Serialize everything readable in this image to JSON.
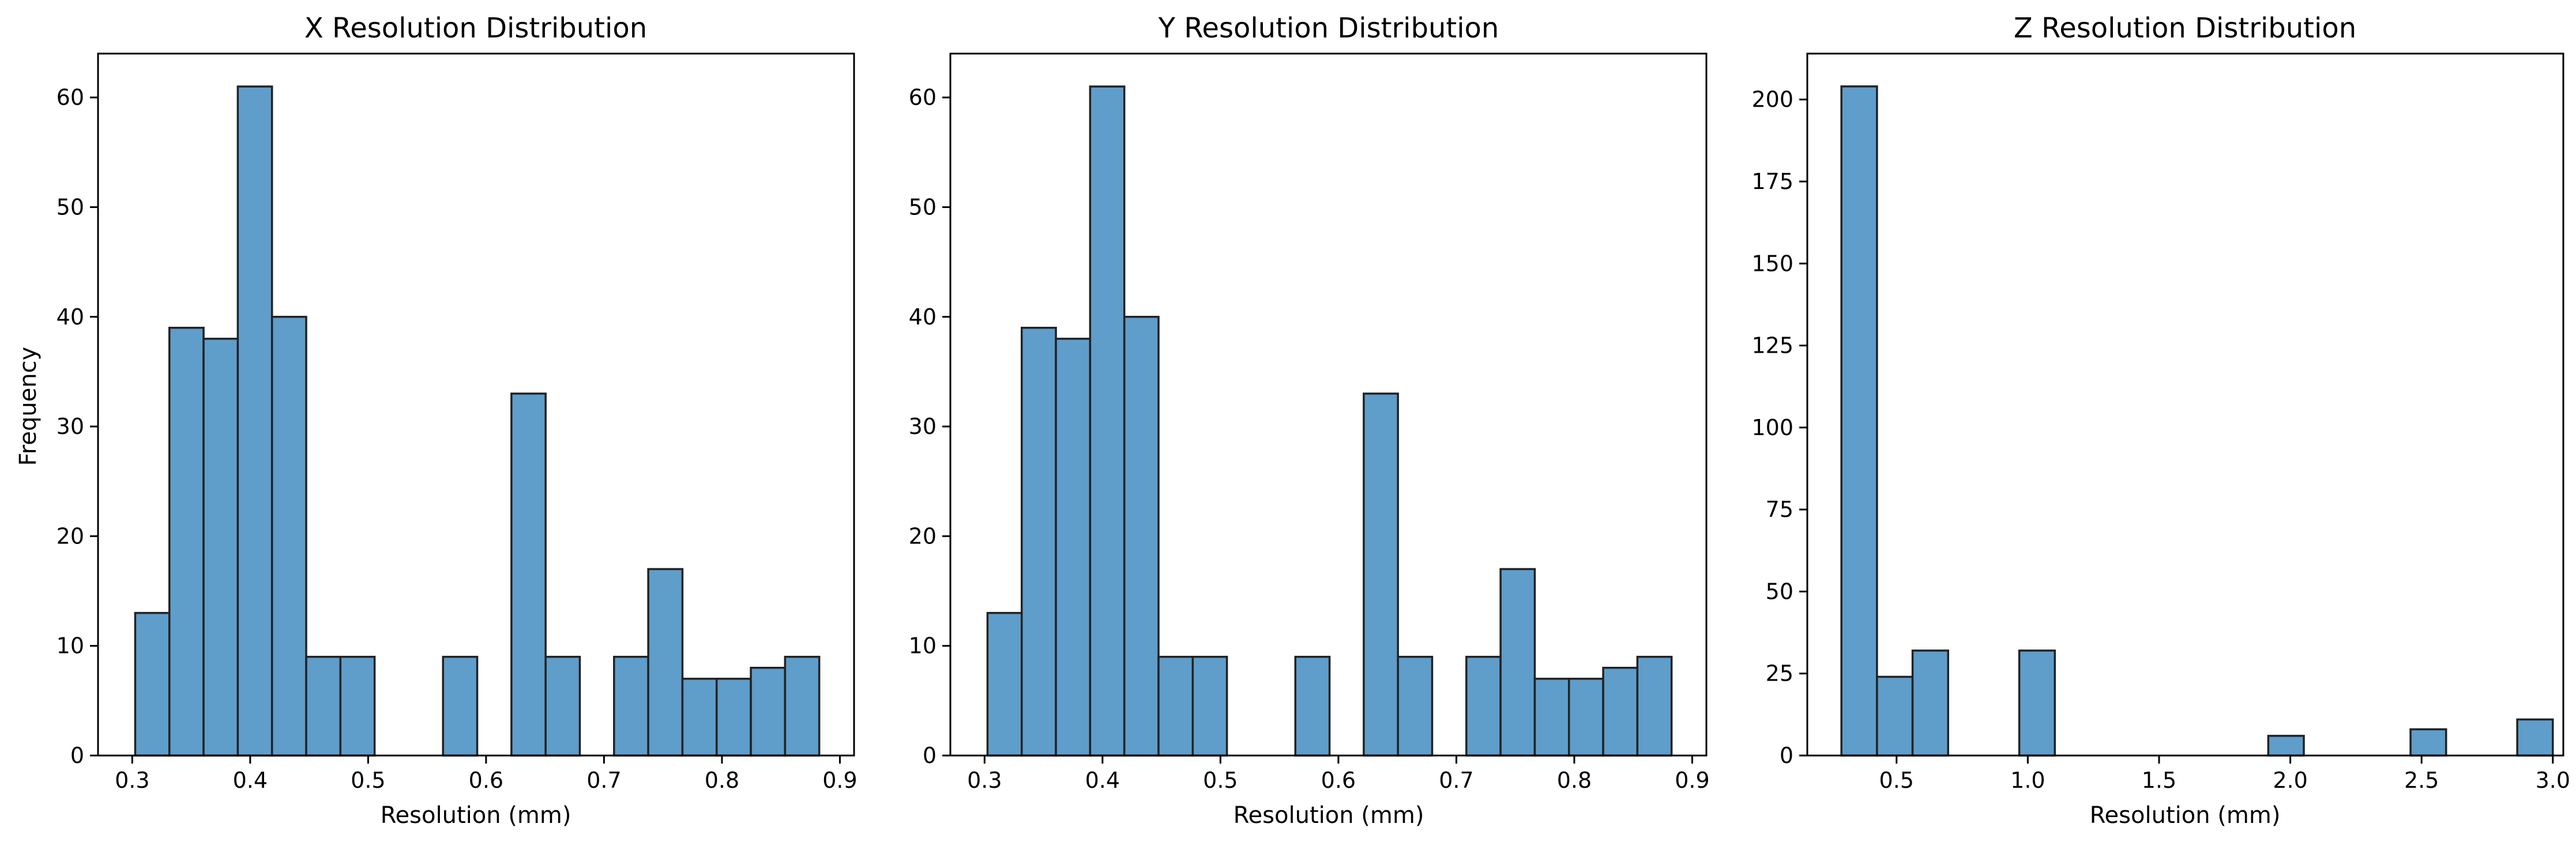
{
  "chart_data": [
    {
      "type": "bar",
      "title": "X Resolution Distribution",
      "xlabel": "Resolution (mm)",
      "ylabel": "Frequency",
      "xlim": [
        0.271,
        0.912
      ],
      "ylim": [
        0,
        64
      ],
      "xticks": [
        0.3,
        0.4,
        0.5,
        0.6,
        0.7,
        0.8,
        0.9
      ],
      "xtick_labels": [
        "0.3",
        "0.4",
        "0.5",
        "0.6",
        "0.7",
        "0.8",
        "0.9"
      ],
      "yticks": [
        0,
        10,
        20,
        30,
        40,
        50,
        60
      ],
      "ytick_labels": [
        "0",
        "10",
        "20",
        "30",
        "40",
        "50",
        "60"
      ],
      "bin_start": 0.3025,
      "bin_width": 0.029,
      "values": [
        13,
        39,
        38,
        61,
        40,
        9,
        9,
        0,
        0,
        9,
        0,
        33,
        9,
        0,
        9,
        17,
        7,
        7,
        8,
        9
      ]
    },
    {
      "type": "bar",
      "title": "Y Resolution Distribution",
      "xlabel": "Resolution (mm)",
      "ylabel": "",
      "xlim": [
        0.271,
        0.912
      ],
      "ylim": [
        0,
        64
      ],
      "xticks": [
        0.3,
        0.4,
        0.5,
        0.6,
        0.7,
        0.8,
        0.9
      ],
      "xtick_labels": [
        "0.3",
        "0.4",
        "0.5",
        "0.6",
        "0.7",
        "0.8",
        "0.9"
      ],
      "yticks": [
        0,
        10,
        20,
        30,
        40,
        50,
        60
      ],
      "ytick_labels": [
        "0",
        "10",
        "20",
        "30",
        "40",
        "50",
        "60"
      ],
      "bin_start": 0.3025,
      "bin_width": 0.029,
      "values": [
        13,
        39,
        38,
        61,
        40,
        9,
        9,
        0,
        0,
        9,
        0,
        33,
        9,
        0,
        9,
        17,
        7,
        7,
        8,
        9
      ]
    },
    {
      "type": "bar",
      "title": "Z Resolution Distribution",
      "xlabel": "Resolution (mm)",
      "ylabel": "",
      "xlim": [
        0.16,
        3.04
      ],
      "ylim": [
        0,
        214
      ],
      "xticks": [
        0.5,
        1.0,
        1.5,
        2.0,
        2.5,
        3.0
      ],
      "xtick_labels": [
        "0.5",
        "1.0",
        "1.5",
        "2.0",
        "2.5",
        "3.0"
      ],
      "yticks": [
        0,
        25,
        50,
        75,
        100,
        125,
        150,
        175,
        200
      ],
      "ytick_labels": [
        "0",
        "25",
        "50",
        "75",
        "100",
        "125",
        "150",
        "175",
        "200"
      ],
      "bin_start": 0.29,
      "bin_width": 0.1355,
      "values": [
        204,
        24,
        32,
        0,
        0,
        32,
        0,
        0,
        0,
        0,
        0,
        0,
        6,
        0,
        0,
        0,
        8,
        0,
        0,
        11
      ]
    }
  ]
}
